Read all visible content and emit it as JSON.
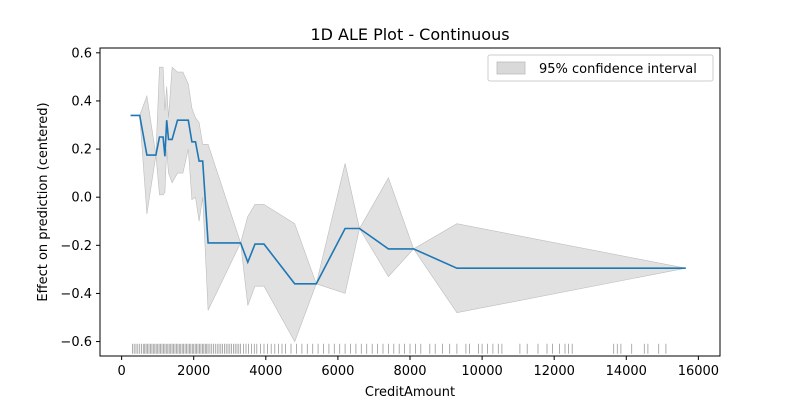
{
  "chart_data": {
    "type": "line",
    "title": "1D ALE Plot - Continuous",
    "xlabel": "CreditAmount",
    "ylabel": "Effect on prediction (centered)",
    "xlim": [
      -600,
      16600
    ],
    "ylim": [
      -0.66,
      0.62
    ],
    "xticks": [
      0,
      2000,
      4000,
      6000,
      8000,
      10000,
      12000,
      14000,
      16000
    ],
    "xtick_labels": [
      "0",
      "2000",
      "4000",
      "6000",
      "8000",
      "10000",
      "12000",
      "14000",
      "16000"
    ],
    "yticks": [
      -0.6,
      -0.4,
      -0.2,
      0.0,
      0.2,
      0.4,
      0.6
    ],
    "ytick_labels": [
      "−0.6",
      "−0.4",
      "−0.2",
      "0.0",
      "0.2",
      "0.4",
      "0.6"
    ],
    "grid": false,
    "legend": {
      "position": "top-right",
      "entries": [
        "95% confidence interval"
      ]
    },
    "colors": {
      "line": "#1f77b4",
      "band": "#d9d9d9",
      "band_edge": "#bdbdbd",
      "rug": "#000000"
    },
    "series": [
      {
        "x": [
          250,
          500,
          700,
          950,
          1050,
          1150,
          1200,
          1250,
          1300,
          1400,
          1550,
          1700,
          1850,
          1950,
          2050,
          2150,
          2250,
          2400,
          3300,
          3500,
          3700,
          3950,
          4800,
          5400,
          6200,
          6600,
          7400,
          8100,
          9300,
          15650
        ],
        "y": [
          0.34,
          0.34,
          0.175,
          0.175,
          0.25,
          0.25,
          0.17,
          0.32,
          0.24,
          0.24,
          0.32,
          0.32,
          0.32,
          0.23,
          0.23,
          0.15,
          0.15,
          -0.19,
          -0.19,
          -0.27,
          -0.195,
          -0.195,
          -0.36,
          -0.36,
          -0.13,
          -0.13,
          -0.215,
          -0.215,
          -0.295,
          -0.295
        ],
        "lower": [
          0.34,
          0.34,
          -0.07,
          0.175,
          0.01,
          0.01,
          0.02,
          0.2,
          0.1,
          0.06,
          0.1,
          0.1,
          0.2,
          -0.01,
          0.0,
          -0.1,
          0.0,
          -0.47,
          -0.19,
          -0.45,
          -0.37,
          -0.37,
          -0.6,
          -0.36,
          -0.4,
          -0.13,
          -0.33,
          -0.215,
          -0.48,
          -0.295
        ],
        "upper": [
          0.34,
          0.34,
          0.42,
          0.175,
          0.54,
          0.54,
          0.36,
          0.46,
          0.33,
          0.54,
          0.52,
          0.52,
          0.47,
          0.37,
          0.33,
          0.31,
          0.22,
          0.22,
          -0.19,
          -0.08,
          -0.03,
          -0.03,
          -0.11,
          -0.36,
          0.14,
          -0.13,
          0.08,
          -0.215,
          -0.11,
          -0.295
        ]
      }
    ],
    "rug": [
      300,
      350,
      400,
      450,
      500,
      550,
      600,
      640,
      680,
      720,
      760,
      800,
      840,
      880,
      920,
      960,
      1000,
      1040,
      1080,
      1120,
      1160,
      1200,
      1240,
      1280,
      1320,
      1360,
      1400,
      1440,
      1480,
      1520,
      1560,
      1600,
      1640,
      1680,
      1720,
      1760,
      1800,
      1840,
      1880,
      1920,
      1960,
      2000,
      2040,
      2080,
      2120,
      2160,
      2200,
      2240,
      2280,
      2320,
      2360,
      2400,
      2450,
      2500,
      2550,
      2600,
      2650,
      2700,
      2750,
      2800,
      2850,
      2900,
      2950,
      3000,
      3050,
      3100,
      3150,
      3200,
      3250,
      3300,
      3380,
      3450,
      3520,
      3600,
      3680,
      3750,
      3850,
      3950,
      4050,
      4150,
      4250,
      4350,
      4450,
      4550,
      4700,
      4850,
      5000,
      5150,
      5300,
      5450,
      5600,
      5750,
      5900,
      6050,
      6200,
      6350,
      6500,
      6650,
      6800,
      6950,
      7100,
      7250,
      7400,
      7550,
      7700,
      7850,
      8000,
      8150,
      8300,
      8550,
      8700,
      8900,
      9100,
      9300,
      9550,
      9650,
      9900,
      10000,
      10150,
      10300,
      10450,
      10550,
      11050,
      11250,
      11550,
      11800,
      11950,
      12150,
      12300,
      12400,
      12500,
      13650,
      13750,
      13850,
      14150,
      14500,
      14600,
      14900,
      15100
    ]
  }
}
